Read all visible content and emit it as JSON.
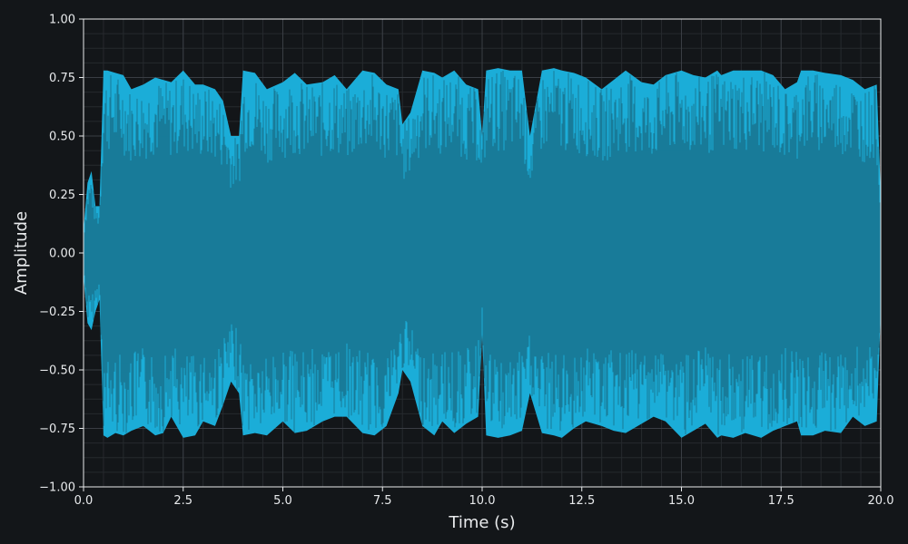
{
  "chart_data": {
    "type": "line",
    "title": "",
    "xlabel": "Time (s)",
    "ylabel": "Amplitude",
    "xlim": [
      0.0,
      20.0
    ],
    "ylim": [
      -1.0,
      1.0
    ],
    "xticks": [
      0.0,
      2.5,
      5.0,
      7.5,
      10.0,
      12.5,
      15.0,
      17.5,
      20.0
    ],
    "xtick_labels": [
      "0.0",
      "2.5",
      "5.0",
      "7.5",
      "10.0",
      "12.5",
      "15.0",
      "17.5",
      "20.0"
    ],
    "yticks": [
      -1.0,
      -0.75,
      -0.5,
      -0.25,
      0.0,
      0.25,
      0.5,
      0.75,
      1.0
    ],
    "ytick_labels": [
      "−1.00",
      "−0.75",
      "−0.50",
      "−0.25",
      "0.00",
      "0.25",
      "0.50",
      "0.75",
      "1.00"
    ],
    "grid": true,
    "minor_grid": true,
    "legend": "none",
    "series": [
      {
        "color": "#1badd8",
        "description_of_envelope": null,
        "x": [
          0.0,
          0.1,
          0.2,
          0.3,
          0.4,
          0.5,
          0.6,
          0.8,
          1.0,
          1.2,
          1.5,
          1.8,
          2.0,
          2.2,
          2.5,
          2.8,
          3.0,
          3.3,
          3.5,
          3.7,
          3.9,
          4.0,
          4.3,
          4.6,
          5.0,
          5.3,
          5.6,
          6.0,
          6.3,
          6.6,
          7.0,
          7.3,
          7.6,
          7.9,
          8.0,
          8.2,
          8.5,
          8.8,
          9.0,
          9.3,
          9.6,
          9.9,
          10.0,
          10.1,
          10.4,
          10.7,
          11.0,
          11.2,
          11.5,
          11.8,
          12.0,
          12.3,
          12.6,
          13.0,
          13.3,
          13.6,
          14.0,
          14.3,
          14.6,
          15.0,
          15.3,
          15.6,
          15.9,
          16.0,
          16.3,
          16.6,
          17.0,
          17.3,
          17.6,
          17.9,
          18.0,
          18.3,
          18.6,
          19.0,
          19.3,
          19.6,
          19.9,
          20.0
        ],
        "y_max": [
          0.1,
          0.3,
          0.35,
          0.2,
          0.2,
          0.78,
          0.78,
          0.77,
          0.76,
          0.7,
          0.72,
          0.75,
          0.74,
          0.73,
          0.78,
          0.72,
          0.72,
          0.7,
          0.65,
          0.5,
          0.5,
          0.78,
          0.77,
          0.7,
          0.73,
          0.77,
          0.72,
          0.73,
          0.76,
          0.7,
          0.78,
          0.77,
          0.72,
          0.7,
          0.55,
          0.6,
          0.78,
          0.77,
          0.75,
          0.78,
          0.72,
          0.7,
          0.5,
          0.78,
          0.79,
          0.78,
          0.78,
          0.5,
          0.78,
          0.79,
          0.78,
          0.77,
          0.75,
          0.7,
          0.74,
          0.78,
          0.73,
          0.72,
          0.76,
          0.78,
          0.76,
          0.75,
          0.78,
          0.76,
          0.78,
          0.78,
          0.78,
          0.76,
          0.7,
          0.73,
          0.78,
          0.78,
          0.77,
          0.76,
          0.74,
          0.7,
          0.72,
          0.25
        ],
        "y_min": [
          -0.1,
          -0.3,
          -0.33,
          -0.25,
          -0.2,
          -0.78,
          -0.79,
          -0.77,
          -0.78,
          -0.76,
          -0.74,
          -0.78,
          -0.77,
          -0.7,
          -0.79,
          -0.78,
          -0.72,
          -0.74,
          -0.65,
          -0.55,
          -0.6,
          -0.78,
          -0.77,
          -0.78,
          -0.72,
          -0.77,
          -0.76,
          -0.72,
          -0.7,
          -0.7,
          -0.77,
          -0.78,
          -0.74,
          -0.6,
          -0.5,
          -0.55,
          -0.74,
          -0.78,
          -0.72,
          -0.77,
          -0.73,
          -0.7,
          -0.35,
          -0.78,
          -0.79,
          -0.78,
          -0.76,
          -0.6,
          -0.77,
          -0.78,
          -0.79,
          -0.75,
          -0.72,
          -0.74,
          -0.76,
          -0.77,
          -0.73,
          -0.7,
          -0.72,
          -0.79,
          -0.76,
          -0.73,
          -0.79,
          -0.78,
          -0.79,
          -0.77,
          -0.79,
          -0.76,
          -0.74,
          -0.72,
          -0.78,
          -0.78,
          -0.76,
          -0.77,
          -0.7,
          -0.74,
          -0.72,
          -0.25
        ]
      }
    ]
  },
  "colors": {
    "background": "#131619",
    "plot_background": "#131619",
    "grid_major": "#3a3e44",
    "grid_minor": "#262a2e",
    "axis": "#e8eaec",
    "series": "#1badd8"
  }
}
